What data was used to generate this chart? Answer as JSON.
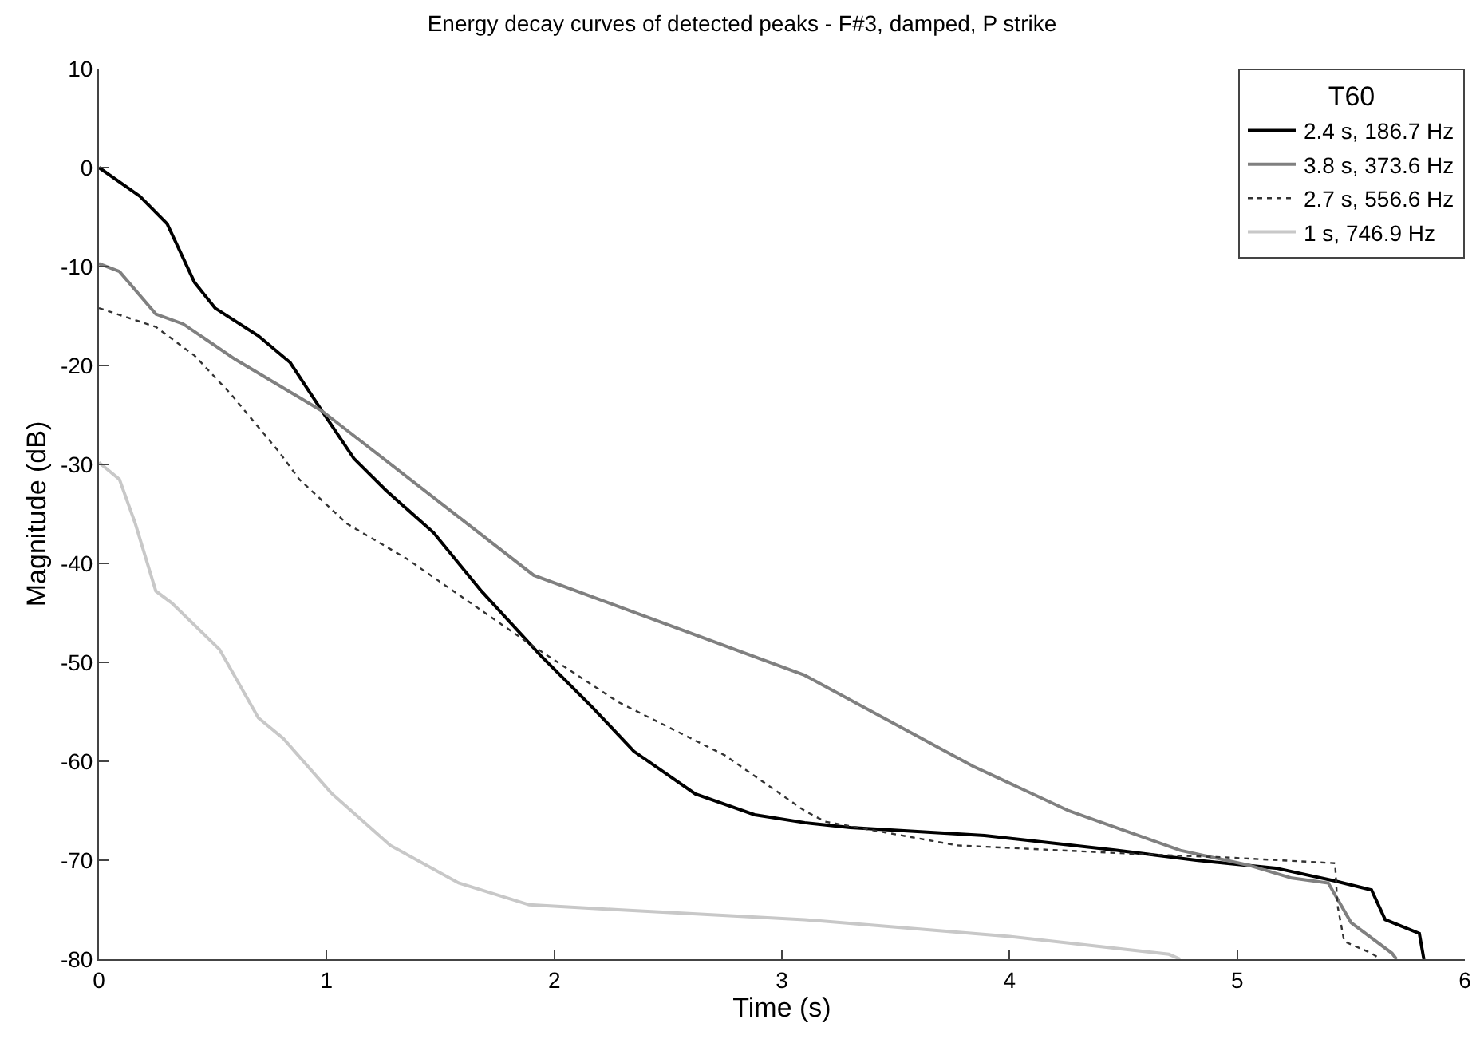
{
  "chart_data": {
    "type": "line",
    "title": "Energy decay curves of detected peaks - F#3, damped, P strike",
    "xlabel": "Time (s)",
    "ylabel": "Magnitude (dB)",
    "legend_title": "T60",
    "series": [
      {
        "name": "2.4 s, 186.7 Hz",
        "color": "#000000",
        "line_style": "solid",
        "x": [
          0,
          0.18,
          0.3,
          0.42,
          0.51,
          0.7,
          0.84,
          0.98,
          1.12,
          1.26,
          1.47,
          1.68,
          1.94,
          2.17,
          2.35,
          2.62,
          2.88,
          3.1,
          3.3,
          3.89,
          4.47,
          4.82,
          5.17,
          5.43,
          5.59,
          5.65,
          5.8,
          5.82
        ],
        "values": [
          0,
          -2.9,
          -5.7,
          -11.6,
          -14.2,
          -17,
          -19.7,
          -24.6,
          -29.4,
          -32.6,
          -36.9,
          -42.8,
          -49.3,
          -54.6,
          -59,
          -63.3,
          -65.4,
          -66.2,
          -66.7,
          -67.5,
          -69,
          -70,
          -70.8,
          -72.1,
          -73,
          -76,
          -77.4,
          -80
        ]
      },
      {
        "name": "3.8 s, 373.6 Hz",
        "color": "#808080",
        "line_style": "solid",
        "x": [
          0,
          0.09,
          0.25,
          0.37,
          0.6,
          0.98,
          1.91,
          3.1,
          3.84,
          4.26,
          4.75,
          5.05,
          5.24,
          5.4,
          5.5,
          5.68,
          5.7
        ],
        "values": [
          -9.7,
          -10.5,
          -14.8,
          -15.8,
          -19.4,
          -24.6,
          -41.2,
          -51.3,
          -60.5,
          -65,
          -69,
          -70.5,
          -71.8,
          -72.3,
          -76.3,
          -79.4,
          -80
        ]
      },
      {
        "name": "2.7 s, 556.6 Hz",
        "color": "#333333",
        "line_style": "dotted",
        "x": [
          0,
          0.25,
          0.42,
          0.58,
          0.79,
          0.88,
          1.09,
          1.35,
          1.89,
          2.28,
          2.75,
          3.1,
          3.19,
          3.77,
          4.59,
          4.94,
          5.43,
          5.44,
          5.47,
          5.59,
          5.63
        ],
        "values": [
          -14.2,
          -16.1,
          -19,
          -22.9,
          -28.7,
          -31.5,
          -36,
          -39.5,
          -48.1,
          -54,
          -59.4,
          -65,
          -66.1,
          -68.5,
          -69.4,
          -69.7,
          -70.3,
          -74.5,
          -78.2,
          -79.4,
          -80
        ]
      },
      {
        "name": "1 s, 746.9 Hz",
        "color": "#c8c8c8",
        "line_style": "solid",
        "x": [
          0,
          0.09,
          0.16,
          0.25,
          0.32,
          0.53,
          0.7,
          0.81,
          1.02,
          1.28,
          1.58,
          1.89,
          2.28,
          3.1,
          4.0,
          4.7,
          4.75
        ],
        "values": [
          -29.8,
          -31.5,
          -36,
          -42.8,
          -44,
          -48.7,
          -55.6,
          -57.7,
          -63.2,
          -68.5,
          -72.3,
          -74.5,
          -75,
          -76,
          -77.7,
          -79.5,
          -80
        ]
      }
    ],
    "xlim": [
      0,
      6
    ],
    "xticks": [
      0,
      1,
      2,
      3,
      4,
      5,
      6
    ],
    "ylim": [
      -80,
      10
    ],
    "yticks": [
      -80,
      -70,
      -60,
      -50,
      -40,
      -30,
      -20,
      -10,
      0,
      10
    ],
    "grid": false,
    "legend": "top right",
    "marker": "none"
  }
}
